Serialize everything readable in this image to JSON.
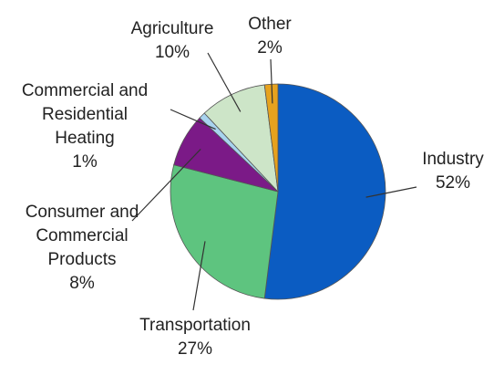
{
  "chart_data": {
    "type": "pie",
    "start_angle_deg": 0,
    "direction": "clockwise",
    "slices": [
      {
        "label_lines": [
          "Industry",
          "52%"
        ],
        "value": 52,
        "color": "#0b5cc2"
      },
      {
        "label_lines": [
          "Transportation",
          "27%"
        ],
        "value": 27,
        "color": "#5ec47f"
      },
      {
        "label_lines": [
          "Consumer and",
          "Commercial",
          "Products",
          "8%"
        ],
        "value": 8,
        "color": "#7b1a87"
      },
      {
        "label_lines": [
          "Commercial and",
          "Residential",
          "Heating",
          "1%"
        ],
        "value": 1,
        "color": "#a8d3ef"
      },
      {
        "label_lines": [
          "Agriculture",
          "10%"
        ],
        "value": 10,
        "color": "#cde5c8"
      },
      {
        "label_lines": [
          "Other",
          "2%"
        ],
        "value": 2,
        "color": "#e6a21e"
      }
    ]
  }
}
